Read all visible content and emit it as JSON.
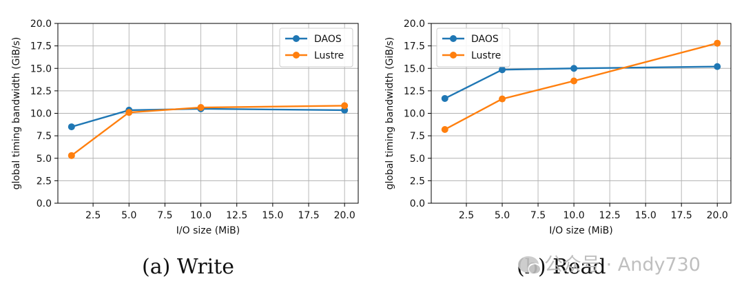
{
  "chart_data": [
    {
      "type": "line",
      "id": "write",
      "caption": "(a)  Write",
      "xlabel": "I/O size (MiB)",
      "ylabel": "global timing bandwidth (GiB/s)",
      "xlim": [
        0.05,
        20.95
      ],
      "ylim": [
        0,
        20
      ],
      "xticks": [
        2.5,
        5.0,
        7.5,
        10.0,
        12.5,
        15.0,
        17.5,
        20.0
      ],
      "xtick_labels": [
        "2.5",
        "5.0",
        "7.5",
        "10.0",
        "12.5",
        "15.0",
        "17.5",
        "20.0"
      ],
      "yticks": [
        0,
        2.5,
        5,
        7.5,
        10,
        12.5,
        15,
        17.5,
        20
      ],
      "ytick_labels": [
        "0.0",
        "2.5",
        "5.0",
        "7.5",
        "10.0",
        "12.5",
        "15.0",
        "17.5",
        "20.0"
      ],
      "grid": true,
      "legend_position": "top-right",
      "x": [
        1,
        5,
        10,
        20
      ],
      "series": [
        {
          "name": "DAOS",
          "color": "#1f77b4",
          "values": [
            8.5,
            10.35,
            10.5,
            10.35
          ]
        },
        {
          "name": "Lustre",
          "color": "#ff7f0e",
          "values": [
            5.3,
            10.1,
            10.65,
            10.85
          ]
        }
      ]
    },
    {
      "type": "line",
      "id": "read",
      "caption": "(b)  Read",
      "xlabel": "I/O size (MiB)",
      "ylabel": "global timing bandwidth (GiB/s)",
      "xlim": [
        0.05,
        20.95
      ],
      "ylim": [
        0,
        20
      ],
      "xticks": [
        2.5,
        5.0,
        7.5,
        10.0,
        12.5,
        15.0,
        17.5,
        20.0
      ],
      "xtick_labels": [
        "2.5",
        "5.0",
        "7.5",
        "10.0",
        "12.5",
        "15.0",
        "17.5",
        "20.0"
      ],
      "yticks": [
        0,
        2.5,
        5,
        7.5,
        10,
        12.5,
        15,
        17.5,
        20
      ],
      "ytick_labels": [
        "0.0",
        "2.5",
        "5.0",
        "7.5",
        "10.0",
        "12.5",
        "15.0",
        "17.5",
        "20.0"
      ],
      "grid": true,
      "legend_position": "top-left",
      "x": [
        1,
        5,
        10,
        20
      ],
      "series": [
        {
          "name": "DAOS",
          "color": "#1f77b4",
          "values": [
            11.65,
            14.85,
            15.0,
            15.2
          ]
        },
        {
          "name": "Lustre",
          "color": "#ff7f0e",
          "values": [
            8.2,
            11.6,
            13.6,
            17.8
          ]
        }
      ]
    }
  ],
  "watermark": "公众号 · Andy730"
}
